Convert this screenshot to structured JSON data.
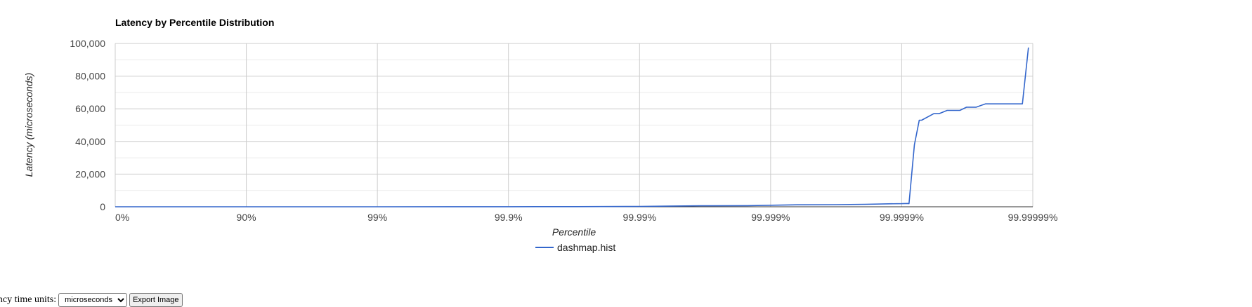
{
  "chart_data": {
    "type": "line",
    "title": "Latency by Percentile Distribution",
    "xlabel": "Percentile",
    "ylabel": "Latency (microseconds)",
    "x_scale": "log-inverse-percentile",
    "x_ticks": [
      "0%",
      "90%",
      "99%",
      "99.9%",
      "99.99%",
      "99.999%",
      "99.9999%",
      "99.99999%"
    ],
    "y_ticks": [
      "0",
      "20,000",
      "40,000",
      "60,000",
      "80,000",
      "100,000"
    ],
    "ylim": [
      0,
      100000
    ],
    "grid": true,
    "legend": "bottom",
    "series": [
      {
        "name": "dashmap.hist",
        "color": "#3366cc",
        "points": [
          [
            0,
            0
          ],
          [
            90,
            5
          ],
          [
            99,
            10
          ],
          [
            99.9,
            30
          ],
          [
            99.97,
            80
          ],
          [
            99.99,
            200
          ],
          [
            99.994,
            400
          ],
          [
            99.9966,
            600
          ],
          [
            99.9985,
            700
          ],
          [
            99.9991,
            1000
          ],
          [
            99.99937,
            1200
          ],
          [
            99.99968,
            1300
          ],
          [
            99.99981,
            1500
          ],
          [
            99.999873,
            1800
          ],
          [
            99.9999,
            1900
          ],
          [
            99.99991,
            2000
          ],
          [
            99.999912,
            1900
          ],
          [
            99.99992,
            38000
          ],
          [
            99.9999265,
            53000
          ],
          [
            99.9999295,
            53000
          ],
          [
            99.999943,
            57000
          ],
          [
            99.999948,
            57000
          ],
          [
            99.999955,
            59000
          ],
          [
            99.999964,
            59000
          ],
          [
            99.999968,
            61000
          ],
          [
            99.999973,
            61000
          ],
          [
            99.999977,
            63000
          ],
          [
            99.999988,
            63000
          ],
          [
            99.9999892,
            97500
          ]
        ]
      }
    ]
  },
  "controls": {
    "units_label": "Latency time units:",
    "units_value": "microseconds",
    "export_label": "Export Image"
  }
}
